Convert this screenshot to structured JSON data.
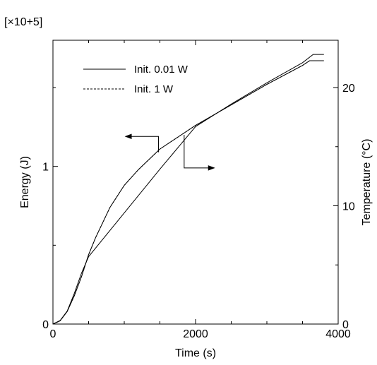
{
  "chart_data": {
    "type": "line",
    "title": "",
    "xlabel": "Time (s)",
    "ylabel_left": "Energy (J)",
    "ylabel_right": "Temperature (°C)",
    "y_left_multiplier": "[×10+5]",
    "xlim": [
      0,
      4000
    ],
    "ylim_left": [
      0,
      1.8
    ],
    "ylim_right": [
      0,
      24
    ],
    "x_ticks": [
      {
        "value": 0,
        "label": "0"
      },
      {
        "value": 2000,
        "label": "2000"
      },
      {
        "value": 4000,
        "label": "4000"
      }
    ],
    "x_minor_ticks": [
      500,
      1000,
      1500,
      2500,
      3000,
      3500
    ],
    "y_left_ticks": [
      {
        "value": 0,
        "label": "0"
      },
      {
        "value": 1,
        "label": "1"
      }
    ],
    "y_left_minor_ticks": [
      0.5,
      1.5
    ],
    "y_right_ticks": [
      {
        "value": 0,
        "label": "0"
      },
      {
        "value": 10,
        "label": "10"
      },
      {
        "value": 20,
        "label": "20"
      }
    ],
    "y_right_minor_ticks": [
      5,
      15
    ],
    "grid": false,
    "legend_position": "top-left",
    "series": [
      {
        "name": "Init. 0.01 W",
        "axis": "left",
        "style": "solid",
        "x": [
          0,
          100,
          200,
          300,
          400,
          500,
          600,
          800,
          1000,
          1200,
          1500,
          1800,
          2000,
          2500,
          3000,
          3500,
          3600,
          3800
        ],
        "y": [
          0,
          0.02,
          0.08,
          0.18,
          0.3,
          0.44,
          0.55,
          0.74,
          0.88,
          0.98,
          1.11,
          1.2,
          1.26,
          1.39,
          1.52,
          1.64,
          1.67,
          1.67
        ]
      },
      {
        "name": "Init. 1 W",
        "axis": "left",
        "style": "dashed",
        "x": [
          0,
          100,
          200,
          300,
          400,
          500,
          600,
          800,
          1000,
          1200,
          1500,
          1800,
          2000,
          2500,
          3000,
          3500,
          3600,
          3800
        ],
        "y": [
          0,
          0.02,
          0.08,
          0.18,
          0.3,
          0.44,
          0.55,
          0.74,
          0.88,
          0.98,
          1.11,
          1.2,
          1.26,
          1.39,
          1.52,
          1.64,
          1.67,
          1.67
        ]
      },
      {
        "name": "Temperature",
        "axis": "right",
        "style": "solid",
        "x": [
          0,
          100,
          200,
          300,
          400,
          500,
          1000,
          1500,
          2000,
          2500,
          3000,
          3500,
          3650,
          3800
        ],
        "y": [
          0,
          0.3,
          1.1,
          2.6,
          4.3,
          5.7,
          9.4,
          13.1,
          16.7,
          18.6,
          20.4,
          22.1,
          22.8,
          22.8
        ]
      }
    ],
    "annotations": [
      {
        "kind": "arrow",
        "direction": "left",
        "points_to_axis": "left",
        "anchor_x": 1480,
        "anchor_y_left": 1.09,
        "vertical_to_y_left": 1.19,
        "tip_x": 1020
      },
      {
        "kind": "arrow",
        "direction": "right",
        "points_to_axis": "right",
        "anchor_x": 1840,
        "anchor_y_right": 16.0,
        "vertical_to_y_right": 13.2,
        "tip_x": 2260
      }
    ]
  }
}
